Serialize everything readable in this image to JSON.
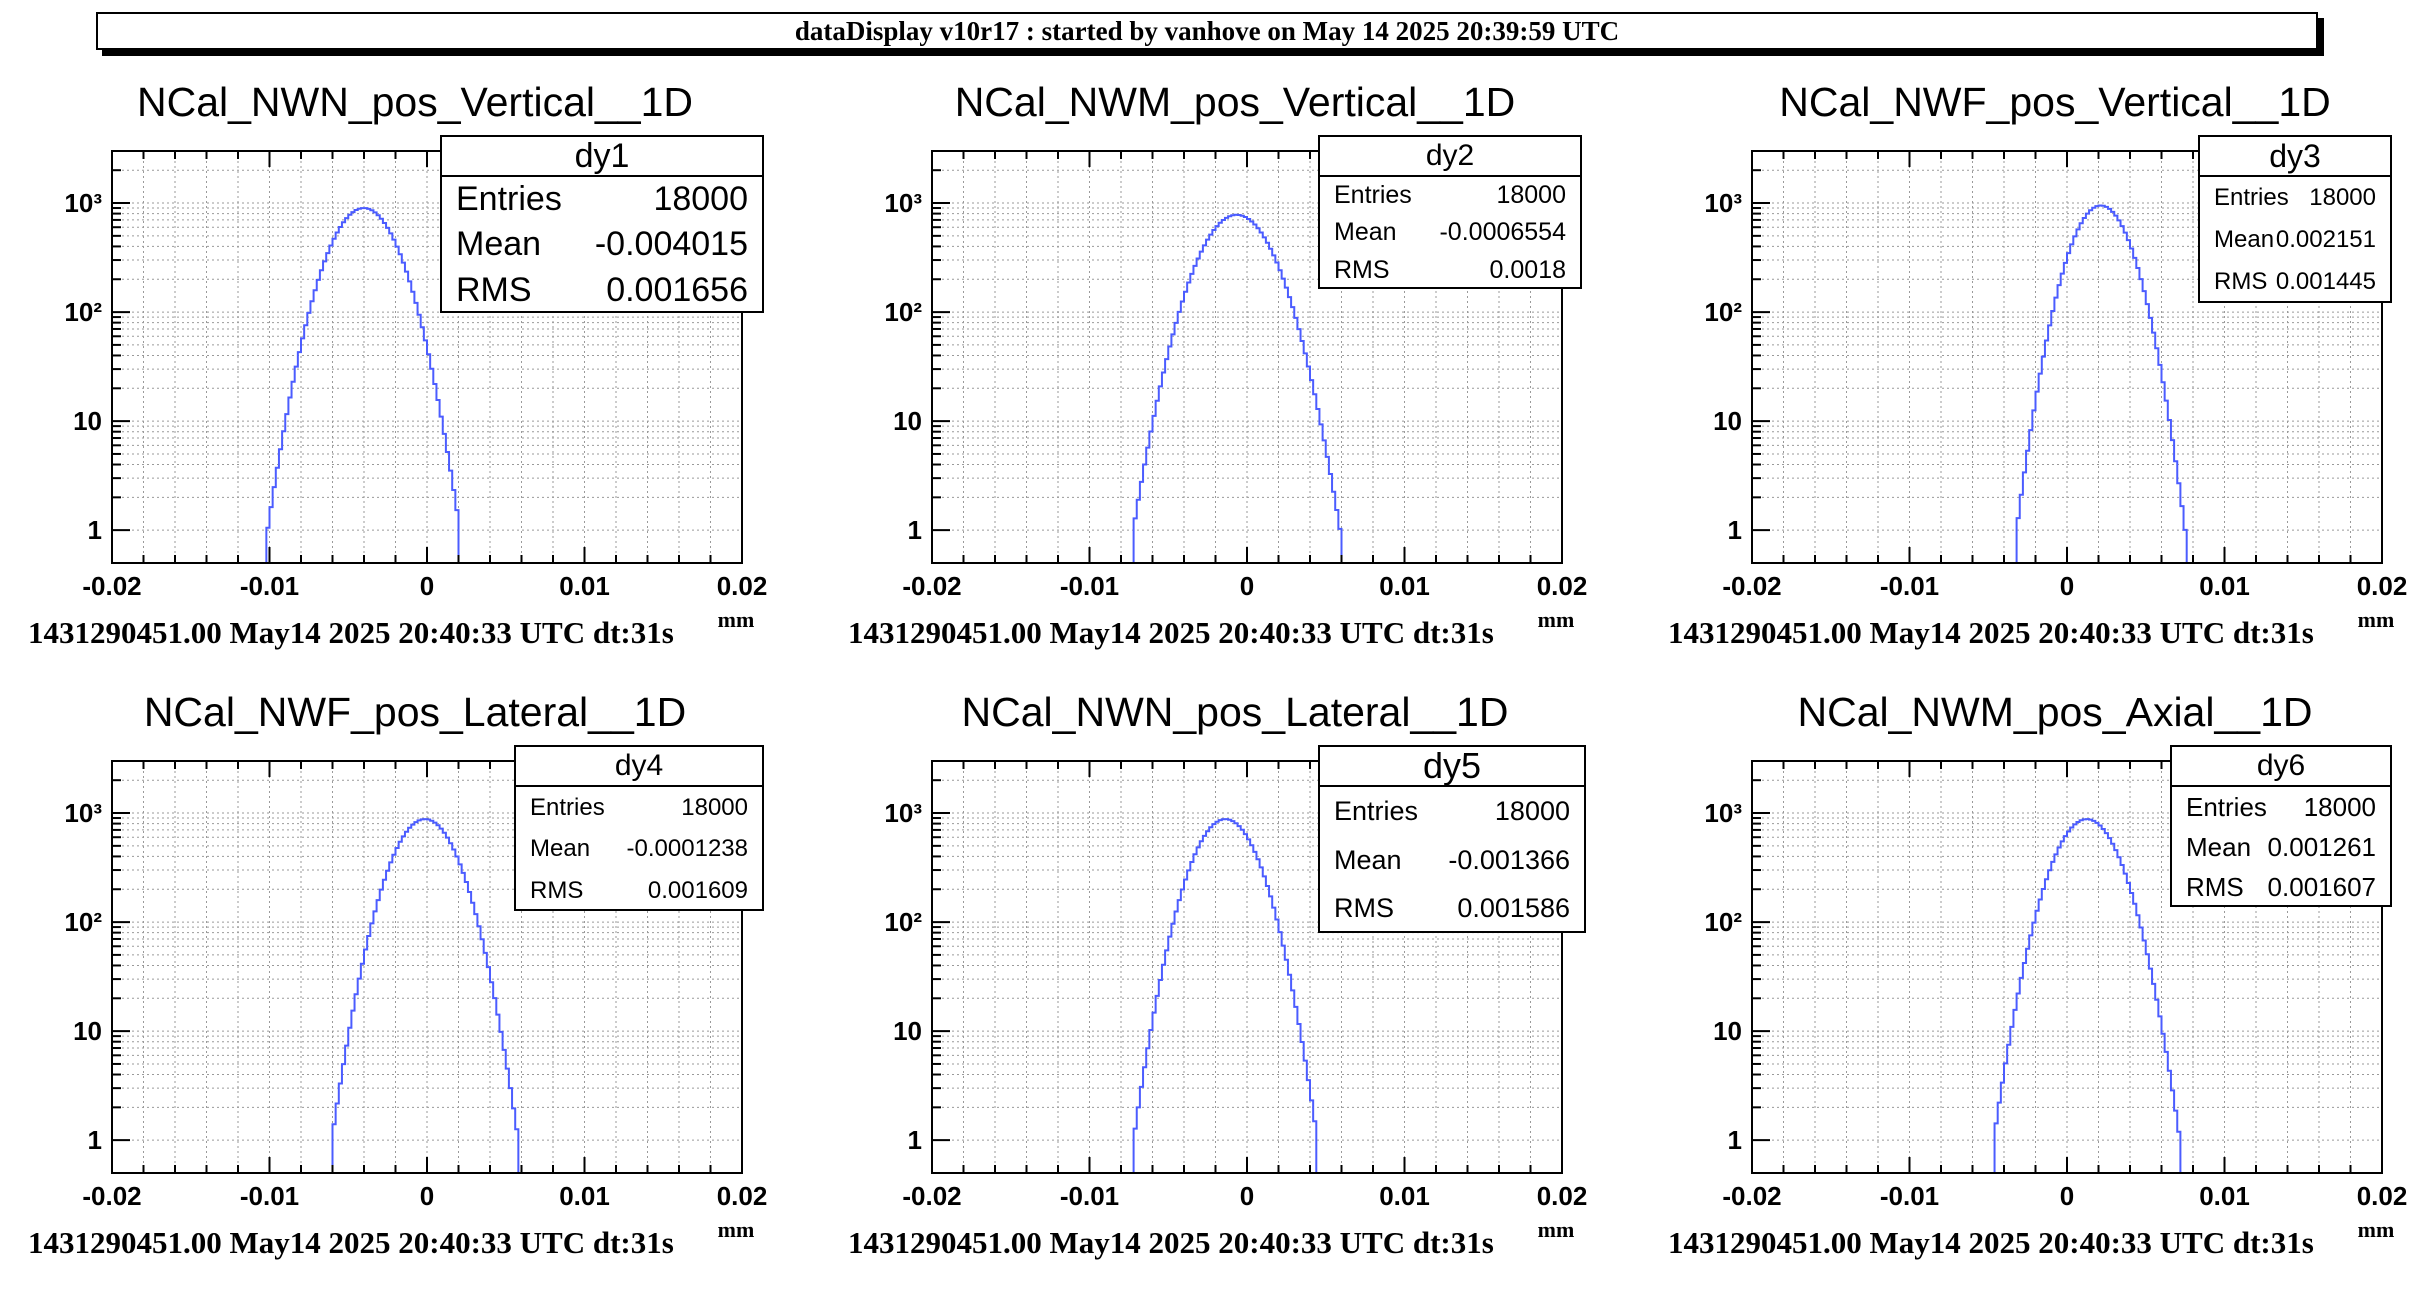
{
  "banner": "dataDisplay v10r17 : started by vanhove on May 14 2025 20:39:59 UTC",
  "axis": {
    "x_ticks": [
      "-0.02",
      "-0.01",
      "0",
      "0.01",
      "0.02"
    ],
    "xlabel": "mm",
    "y_ticks": [
      "1",
      "10",
      "10²",
      "10³"
    ]
  },
  "colors": {
    "histogram": "#4b5cff",
    "grid": "#9a9a9a",
    "frame": "#000000"
  },
  "chart_data": [
    {
      "type": "histogram",
      "title": "NCal_NWN_pos_Vertical__1D",
      "xlabel": "mm",
      "xlim": [
        -0.02,
        0.02
      ],
      "ylim": [
        0.5,
        3000
      ],
      "yscale": "log",
      "grid": true,
      "stats": {
        "name": "dy1",
        "entries": "18000",
        "mean": "-0.004015",
        "rms": "0.001656"
      },
      "peak": 900,
      "footer": "1431290451.00 May14 2025 20:40:33 UTC dt:31s"
    },
    {
      "type": "histogram",
      "title": "NCal_NWM_pos_Vertical__1D",
      "xlabel": "mm",
      "xlim": [
        -0.02,
        0.02
      ],
      "ylim": [
        0.5,
        3000
      ],
      "yscale": "log",
      "grid": true,
      "stats": {
        "name": "dy2",
        "entries": "18000",
        "mean": "-0.0006554",
        "rms": "0.0018"
      },
      "peak": 780,
      "footer": "1431290451.00 May14 2025 20:40:33 UTC dt:31s"
    },
    {
      "type": "histogram",
      "title": "NCal_NWF_pos_Vertical__1D",
      "xlabel": "mm",
      "xlim": [
        -0.02,
        0.02
      ],
      "ylim": [
        0.5,
        3000
      ],
      "yscale": "log",
      "grid": true,
      "stats": {
        "name": "dy3",
        "entries": "18000",
        "mean": "0.002151",
        "rms": "0.001445"
      },
      "peak": 950,
      "footer": "1431290451.00 May14 2025 20:40:33 UTC dt:31s"
    },
    {
      "type": "histogram",
      "title": "NCal_NWF_pos_Lateral__1D",
      "xlabel": "mm",
      "xlim": [
        -0.02,
        0.02
      ],
      "ylim": [
        0.5,
        3000
      ],
      "yscale": "log",
      "grid": true,
      "stats": {
        "name": "dy4",
        "entries": "18000",
        "mean": "-0.0001238",
        "rms": "0.001609"
      },
      "peak": 880,
      "footer": "1431290451.00 May14 2025 20:40:33 UTC dt:31s"
    },
    {
      "type": "histogram",
      "title": "NCal_NWN_pos_Lateral__1D",
      "xlabel": "mm",
      "xlim": [
        -0.02,
        0.02
      ],
      "ylim": [
        0.5,
        3000
      ],
      "yscale": "log",
      "grid": true,
      "stats": {
        "name": "dy5",
        "entries": "18000",
        "mean": "-0.001366",
        "rms": "0.001586"
      },
      "peak": 880,
      "footer": "1431290451.00 May14 2025 20:40:33 UTC dt:31s"
    },
    {
      "type": "histogram",
      "title": "NCal_NWM_pos_Axial__1D",
      "xlabel": "mm",
      "xlim": [
        -0.02,
        0.02
      ],
      "ylim": [
        0.5,
        3000
      ],
      "yscale": "log",
      "grid": true,
      "stats": {
        "name": "dy6",
        "entries": "18000",
        "mean": "0.001261",
        "rms": "0.001607"
      },
      "peak": 880,
      "footer": "1431290451.00 May14 2025 20:40:33 UTC dt:31s"
    }
  ]
}
